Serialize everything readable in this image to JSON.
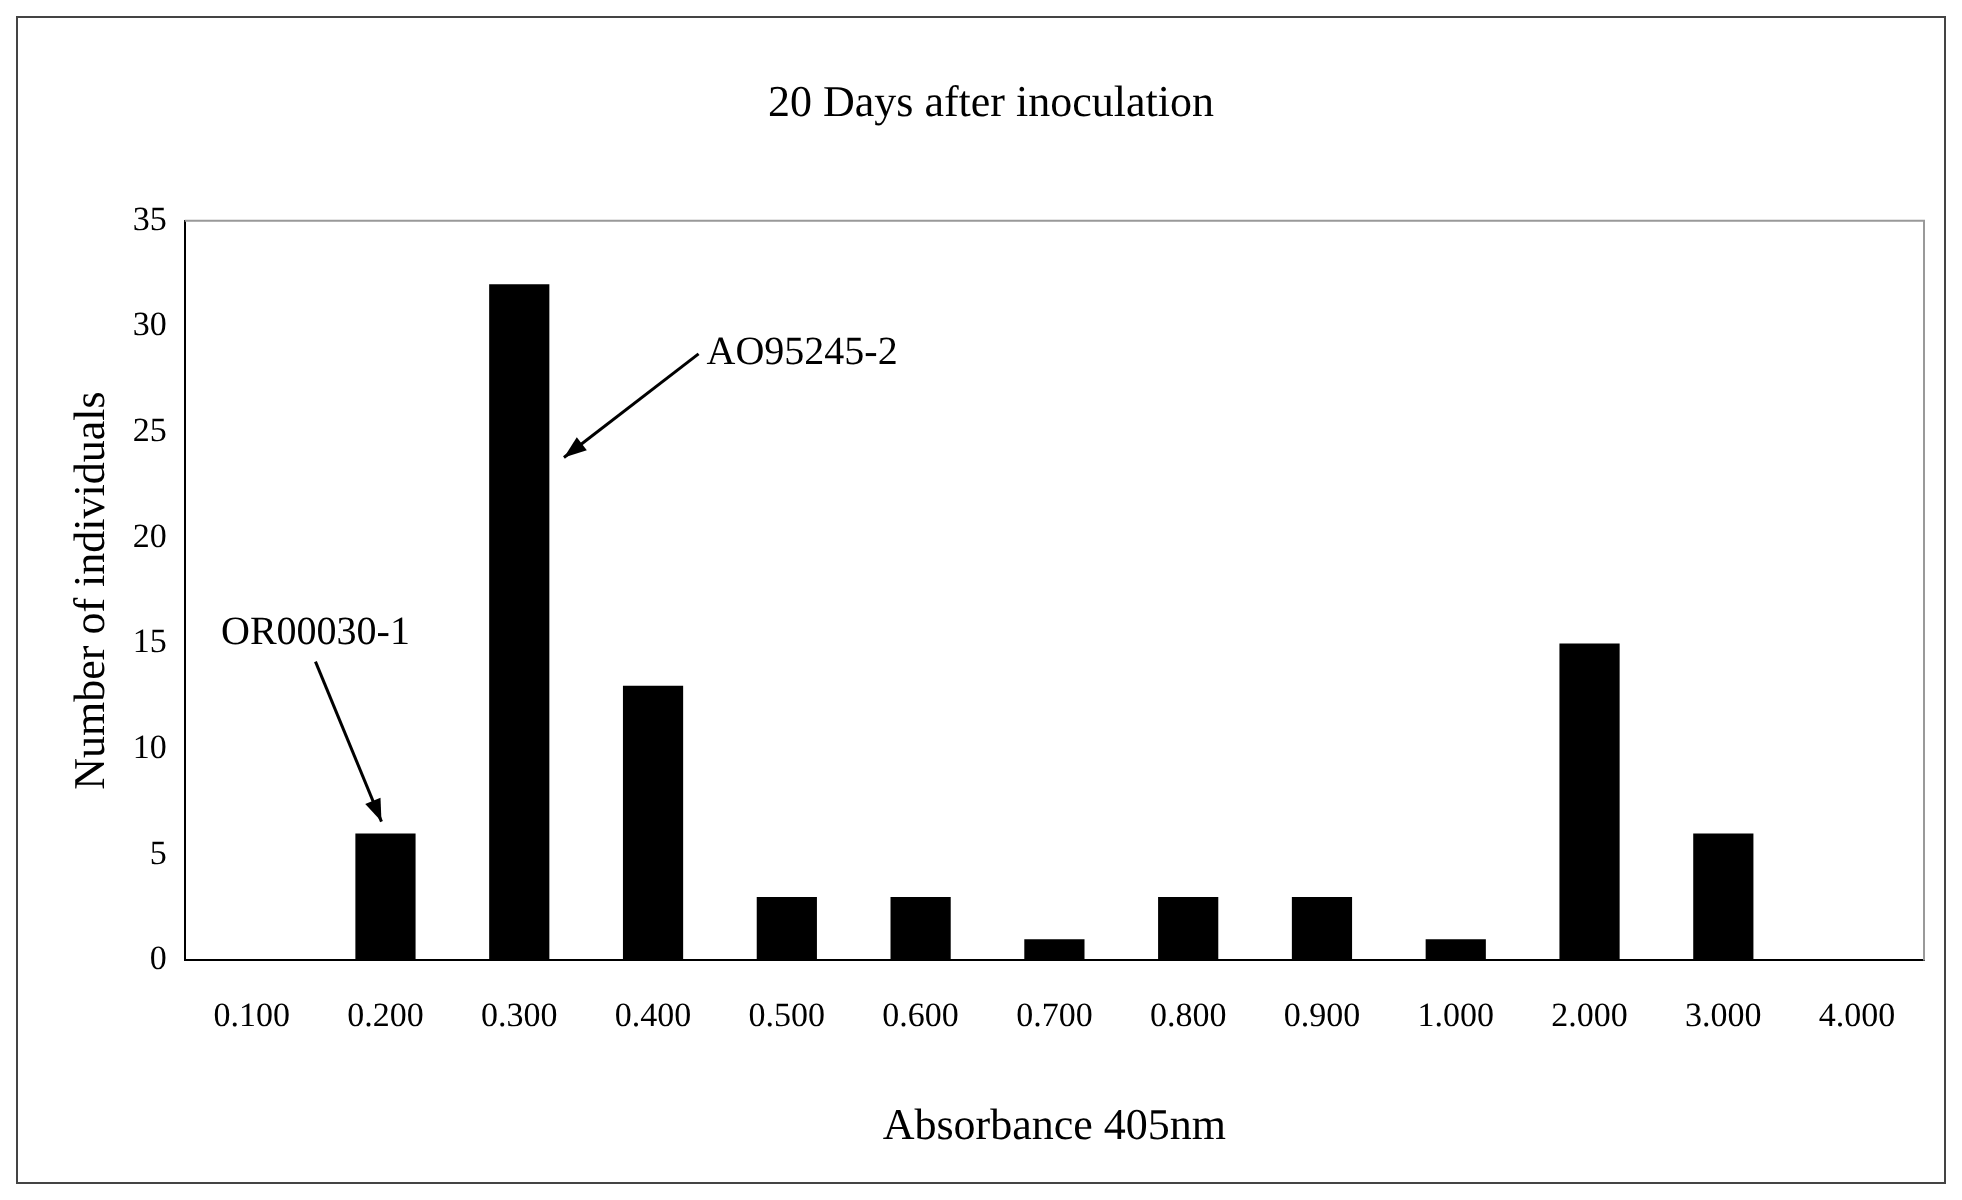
{
  "chart_data": {
    "type": "bar",
    "title": "20 Days after inoculation",
    "xlabel": "Absorbance 405nm",
    "ylabel": "Number of individuals",
    "categories": [
      "0.100",
      "0.200",
      "0.300",
      "0.400",
      "0.500",
      "0.600",
      "0.700",
      "0.800",
      "0.900",
      "1.000",
      "2.000",
      "3.000",
      "4.000"
    ],
    "values": [
      0,
      6,
      32,
      13,
      3,
      3,
      1,
      3,
      3,
      1,
      15,
      6,
      0
    ],
    "color": "#000000",
    "ylim": [
      0,
      35
    ],
    "yticks": [
      0,
      5,
      10,
      15,
      20,
      25,
      30,
      35
    ],
    "grid": false,
    "legend": false,
    "annotations": [
      {
        "text": "OR00030-1",
        "x": "0.200",
        "y": 6
      },
      "AO95245-2"
    ]
  }
}
